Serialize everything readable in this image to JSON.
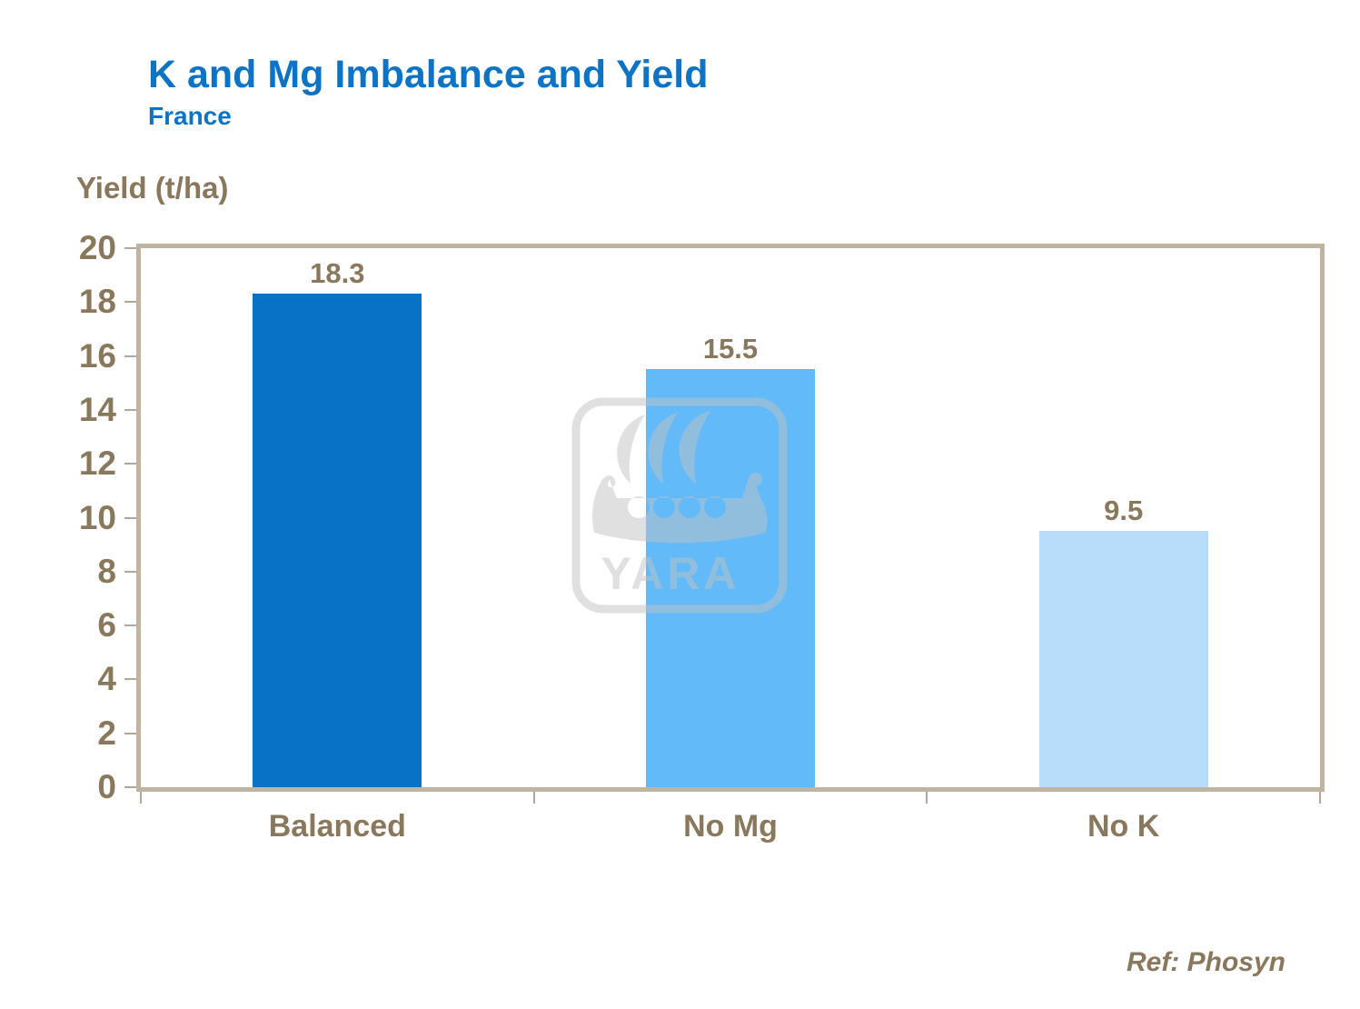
{
  "slide": {
    "title": "K and Mg Imbalance and Yield",
    "subtitle": "France",
    "reference": "Ref: Phosyn"
  },
  "watermark": {
    "label": "YARA",
    "icon": "yara-viking-ship-logo"
  },
  "colors": {
    "title_blue": "#0D73C5",
    "text_brown": "#8A785D",
    "plot_border": "#BFB3A1",
    "tick": "#B3A795",
    "bar_colors": [
      "#0873C6",
      "#63BAF9",
      "#B8DDFB"
    ],
    "watermark_gray": "#C2C2C2"
  },
  "chart_data": {
    "type": "bar",
    "title": "K and Mg Imbalance and Yield",
    "subtitle": "France",
    "ylabel": "Yield (t/ha)",
    "xlabel": "",
    "categories": [
      "Balanced",
      "No Mg",
      "No K"
    ],
    "values": [
      18.3,
      15.5,
      9.5
    ],
    "data_labels": [
      "18.3",
      "15.5",
      "9.5"
    ],
    "ylim": [
      0,
      20
    ],
    "ytick_step": 2,
    "yticks": [
      0,
      2,
      4,
      6,
      8,
      10,
      12,
      14,
      16,
      18,
      20
    ],
    "grid": false,
    "legend": false,
    "annotation": "Ref: Phosyn"
  }
}
